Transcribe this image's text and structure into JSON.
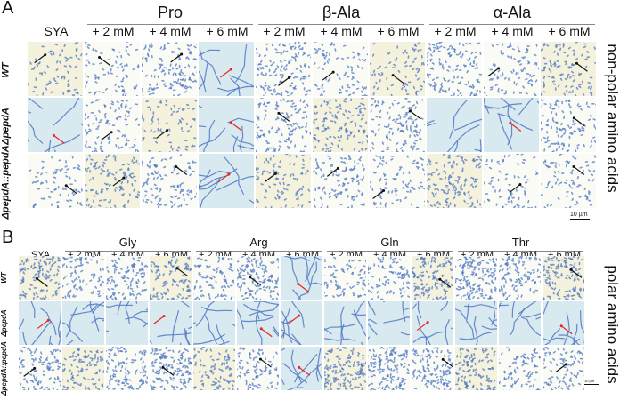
{
  "figure": {
    "panel_a": {
      "letter": "A",
      "side_label": "non-polar amino acids",
      "control_label": "SYA",
      "groups": [
        {
          "name": "Pro",
          "conditions": [
            "+ 2 mM",
            "+ 4 mM",
            "+ 6 mM"
          ]
        },
        {
          "name": "β-Ala",
          "conditions": [
            "+ 2 mM",
            "+ 4 mM",
            "+ 6 mM"
          ]
        },
        {
          "name": "α-Ala",
          "conditions": [
            "+ 2 mM",
            "+ 4 mM",
            "+ 6 mM"
          ]
        }
      ],
      "rows": [
        {
          "label": "WT",
          "arrows": [
            "black",
            "black",
            "black",
            "red",
            "black",
            "black",
            "black",
            "none",
            "black",
            "black"
          ],
          "morphology": [
            "cells",
            "cells",
            "cells",
            "hyphae",
            "cells",
            "cells",
            "cells",
            "cells",
            "cells",
            "cells"
          ]
        },
        {
          "label": "ΔpepdA",
          "arrows": [
            "red",
            "black",
            "black",
            "red",
            "black",
            "none",
            "black",
            "none",
            "red",
            "black"
          ],
          "morphology": [
            "hyphae",
            "cells",
            "cells",
            "hyphae",
            "cells",
            "cells",
            "cells",
            "hyphae",
            "hyphae",
            "cells"
          ]
        },
        {
          "label": "ΔpepdA::pepdA",
          "arrows": [
            "black",
            "black",
            "black",
            "red",
            "black",
            "black",
            "black",
            "none",
            "black",
            "black"
          ],
          "morphology": [
            "cells",
            "cells",
            "cells",
            "hyphae",
            "cells",
            "cells",
            "cells",
            "cells",
            "cells",
            "cells"
          ]
        }
      ],
      "scale_bar": "10 µm"
    },
    "panel_b": {
      "letter": "B",
      "side_label": "polar amino acids",
      "control_label": "SYA",
      "groups": [
        {
          "name": "Gly",
          "conditions": [
            "+ 2 mM",
            "+ 4 mM",
            "+ 6 mM"
          ]
        },
        {
          "name": "Arg",
          "conditions": [
            "+ 2 mM",
            "+ 4 mM",
            "+ 6 mM"
          ]
        },
        {
          "name": "Gln",
          "conditions": [
            "+ 2 mM",
            "+ 4 mM",
            "+ 6 mM"
          ]
        },
        {
          "name": "Thr",
          "conditions": [
            "+ 2 mM",
            "+ 4 mM",
            "+ 6 mM"
          ]
        }
      ],
      "rows": [
        {
          "label": "WT",
          "arrows": [
            "black",
            "none",
            "none",
            "black",
            "none",
            "black",
            "red",
            "none",
            "none",
            "black",
            "none",
            "none",
            "black"
          ],
          "morphology": [
            "cells",
            "cells",
            "cells",
            "cells",
            "cells",
            "cells",
            "hyphae",
            "cells",
            "cells",
            "cells",
            "cells",
            "cells",
            "cells"
          ]
        },
        {
          "label": "ΔpepdA",
          "arrows": [
            "red",
            "none",
            "none",
            "red",
            "none",
            "red",
            "red",
            "none",
            "none",
            "red",
            "none",
            "none",
            "red"
          ],
          "morphology": [
            "hyphae",
            "hyphae",
            "hyphae",
            "hyphae",
            "hyphae",
            "hyphae",
            "hyphae",
            "hyphae",
            "hyphae",
            "hyphae",
            "hyphae",
            "hyphae",
            "hyphae"
          ]
        },
        {
          "label": "ΔpepdA::pepdA",
          "arrows": [
            "black",
            "none",
            "none",
            "black",
            "none",
            "black",
            "red",
            "none",
            "none",
            "black",
            "none",
            "none",
            "black"
          ],
          "morphology": [
            "cells",
            "cells",
            "cells",
            "cells",
            "cells",
            "cells",
            "hyphae",
            "cells",
            "cells",
            "cells",
            "cells",
            "cells",
            "cells"
          ]
        }
      ],
      "scale_bar": "10 µm"
    },
    "colors": {
      "cell": "#4f78c4",
      "arrow_black": "#111111",
      "arrow_red": "#e8261e",
      "bg_yellow": "#f4f1dc",
      "bg_blue": "#d9e9f0"
    }
  }
}
